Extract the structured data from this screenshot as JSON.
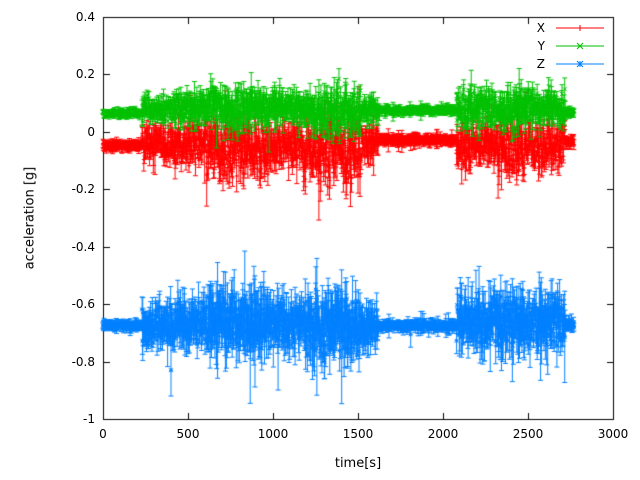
{
  "chart_data": {
    "type": "scatter",
    "style": "points-with-yerrorbars",
    "title": "",
    "xlabel": "time[s]",
    "ylabel": "acceleration [g]",
    "xlim": [
      0,
      3000
    ],
    "ylim": [
      -1,
      0.4
    ],
    "xticks": [
      0,
      500,
      1000,
      1500,
      2000,
      2500,
      3000
    ],
    "yticks": [
      -1,
      -0.8,
      -0.6,
      -0.4,
      -0.2,
      0,
      0.2,
      0.4
    ],
    "grid": false,
    "legend_position": "top-right-inside",
    "t_range": [
      0,
      2770
    ],
    "sample_step": 2,
    "series": [
      {
        "name": "X",
        "color": "#ff0000",
        "marker": "plus",
        "baseline": -0.05,
        "segments": [
          {
            "t0": 0,
            "t1": 230,
            "mean": -0.048,
            "noise": 0.006,
            "err": 0.012
          },
          {
            "t0": 230,
            "t1": 420,
            "mean": -0.045,
            "noise": 0.03,
            "err": 0.03
          },
          {
            "t0": 420,
            "t1": 600,
            "mean": -0.05,
            "noise": 0.04,
            "err": 0.035
          },
          {
            "t0": 600,
            "t1": 980,
            "mean": -0.055,
            "noise": 0.055,
            "err": 0.04
          },
          {
            "t0": 980,
            "t1": 1180,
            "mean": -0.05,
            "noise": 0.04,
            "err": 0.035
          },
          {
            "t0": 1180,
            "t1": 1520,
            "mean": -0.065,
            "noise": 0.06,
            "err": 0.045
          },
          {
            "t0": 1520,
            "t1": 1620,
            "mean": -0.04,
            "noise": 0.03,
            "err": 0.03
          },
          {
            "t0": 1620,
            "t1": 2080,
            "mean": -0.028,
            "noise": 0.006,
            "err": 0.012
          },
          {
            "t0": 2080,
            "t1": 2180,
            "mean": -0.05,
            "noise": 0.045,
            "err": 0.035
          },
          {
            "t0": 2180,
            "t1": 2320,
            "mean": -0.04,
            "noise": 0.035,
            "err": 0.03
          },
          {
            "t0": 2320,
            "t1": 2480,
            "mean": -0.055,
            "noise": 0.05,
            "err": 0.04
          },
          {
            "t0": 2480,
            "t1": 2640,
            "mean": -0.045,
            "noise": 0.045,
            "err": 0.035
          },
          {
            "t0": 2640,
            "t1": 2720,
            "mean": -0.05,
            "noise": 0.04,
            "err": 0.03
          },
          {
            "t0": 2720,
            "t1": 2771,
            "mean": -0.035,
            "noise": 0.008,
            "err": 0.012
          }
        ],
        "spikes": [
          {
            "t": 1305,
            "y": 0.08,
            "err": 0.04
          },
          {
            "t": 1322,
            "y": -0.19,
            "err": 0.03
          },
          {
            "t": 1462,
            "y": -0.18,
            "err": 0.03
          },
          {
            "t": 762,
            "y": -0.16,
            "err": 0.03
          },
          {
            "t": 1810,
            "y": -0.045,
            "err": 0.02
          }
        ]
      },
      {
        "name": "Y",
        "color": "#00c000",
        "marker": "cross",
        "baseline": 0.08,
        "segments": [
          {
            "t0": 0,
            "t1": 230,
            "mean": 0.065,
            "noise": 0.005,
            "err": 0.01
          },
          {
            "t0": 230,
            "t1": 420,
            "mean": 0.08,
            "noise": 0.025,
            "err": 0.02
          },
          {
            "t0": 420,
            "t1": 600,
            "mean": 0.085,
            "noise": 0.03,
            "err": 0.025
          },
          {
            "t0": 600,
            "t1": 980,
            "mean": 0.08,
            "noise": 0.035,
            "err": 0.03
          },
          {
            "t0": 980,
            "t1": 1180,
            "mean": 0.085,
            "noise": 0.03,
            "err": 0.025
          },
          {
            "t0": 1180,
            "t1": 1520,
            "mean": 0.07,
            "noise": 0.04,
            "err": 0.03
          },
          {
            "t0": 1520,
            "t1": 1620,
            "mean": 0.08,
            "noise": 0.025,
            "err": 0.02
          },
          {
            "t0": 1620,
            "t1": 2080,
            "mean": 0.075,
            "noise": 0.006,
            "err": 0.01
          },
          {
            "t0": 2080,
            "t1": 2320,
            "mean": 0.085,
            "noise": 0.035,
            "err": 0.025
          },
          {
            "t0": 2320,
            "t1": 2480,
            "mean": 0.075,
            "noise": 0.04,
            "err": 0.03
          },
          {
            "t0": 2480,
            "t1": 2720,
            "mean": 0.085,
            "noise": 0.035,
            "err": 0.025
          },
          {
            "t0": 2720,
            "t1": 2771,
            "mean": 0.07,
            "noise": 0.008,
            "err": 0.01
          }
        ],
        "spikes": [
          {
            "t": 1388,
            "y": 0.185,
            "err": 0.035
          },
          {
            "t": 1352,
            "y": -0.02,
            "err": 0.02
          },
          {
            "t": 2212,
            "y": -0.01,
            "err": 0.02
          },
          {
            "t": 2422,
            "y": 0.0,
            "err": 0.02
          },
          {
            "t": 1152,
            "y": 0.0,
            "err": 0.02
          }
        ]
      },
      {
        "name": "Z",
        "color": "#0080ff",
        "marker": "star",
        "baseline": -0.67,
        "segments": [
          {
            "t0": 0,
            "t1": 230,
            "mean": -0.675,
            "noise": 0.006,
            "err": 0.012
          },
          {
            "t0": 230,
            "t1": 420,
            "mean": -0.67,
            "noise": 0.035,
            "err": 0.04
          },
          {
            "t0": 420,
            "t1": 600,
            "mean": -0.665,
            "noise": 0.04,
            "err": 0.05
          },
          {
            "t0": 600,
            "t1": 980,
            "mean": -0.66,
            "noise": 0.05,
            "err": 0.06
          },
          {
            "t0": 980,
            "t1": 1180,
            "mean": -0.67,
            "noise": 0.045,
            "err": 0.05
          },
          {
            "t0": 1180,
            "t1": 1520,
            "mean": -0.68,
            "noise": 0.055,
            "err": 0.07
          },
          {
            "t0": 1520,
            "t1": 1620,
            "mean": -0.67,
            "noise": 0.035,
            "err": 0.04
          },
          {
            "t0": 1620,
            "t1": 2080,
            "mean": -0.675,
            "noise": 0.007,
            "err": 0.012
          },
          {
            "t0": 2080,
            "t1": 2320,
            "mean": -0.655,
            "noise": 0.045,
            "err": 0.05
          },
          {
            "t0": 2320,
            "t1": 2480,
            "mean": -0.665,
            "noise": 0.05,
            "err": 0.055
          },
          {
            "t0": 2480,
            "t1": 2720,
            "mean": -0.66,
            "noise": 0.045,
            "err": 0.05
          },
          {
            "t0": 2720,
            "t1": 2771,
            "mean": -0.67,
            "noise": 0.009,
            "err": 0.012
          }
        ],
        "spikes": [
          {
            "t": 400,
            "y": -0.83,
            "err": 0.09
          },
          {
            "t": 1252,
            "y": -0.55,
            "err": 0.08
          },
          {
            "t": 1302,
            "y": -0.8,
            "err": 0.06
          },
          {
            "t": 822,
            "y": -0.58,
            "err": 0.03
          },
          {
            "t": 1810,
            "y": -0.705,
            "err": 0.045
          }
        ]
      }
    ]
  }
}
